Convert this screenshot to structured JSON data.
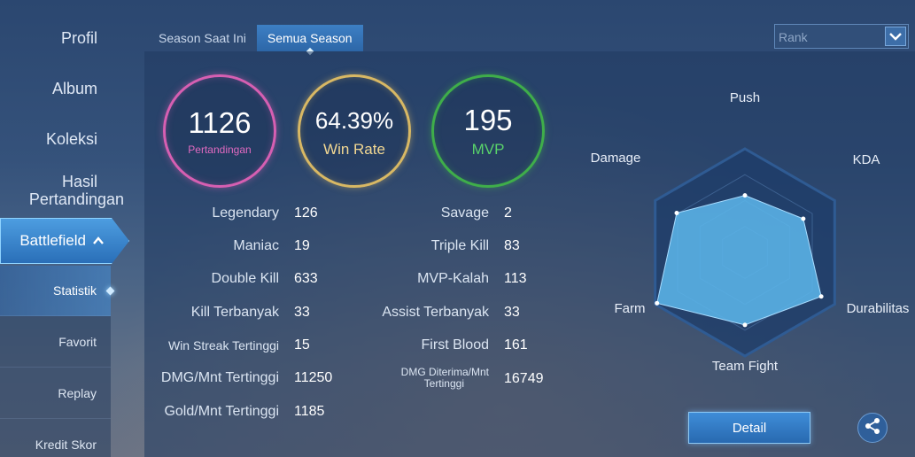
{
  "sidebar": {
    "items": [
      {
        "label": "Profil"
      },
      {
        "label": "Album"
      },
      {
        "label": "Koleksi"
      },
      {
        "label_line1": "Hasil",
        "label_line2": "Pertandingan"
      }
    ],
    "battlefield": {
      "label": "Battlefield",
      "caret": "^"
    },
    "sub_items": [
      {
        "label": "Statistik",
        "active": true
      },
      {
        "label": "Favorit"
      },
      {
        "label": "Replay"
      },
      {
        "label": "Kredit Skor"
      }
    ]
  },
  "tabs": [
    {
      "label": "Season Saat Ini"
    },
    {
      "label": "Semua Season",
      "active": true
    }
  ],
  "filter": {
    "selected": "Rank"
  },
  "summary": {
    "matches": {
      "value": "1126",
      "label": "Pertandingan",
      "color": "#d65fb2"
    },
    "winrate": {
      "value": "64.39%",
      "label": "Win Rate",
      "color": "#d8b864"
    },
    "mvp": {
      "value": "195",
      "label": "MVP",
      "color": "#3fae4a"
    }
  },
  "stats_left": [
    {
      "label": "Legendary",
      "value": "126"
    },
    {
      "label": "Maniac",
      "value": "19"
    },
    {
      "label": "Double Kill",
      "value": "633"
    },
    {
      "label": "Kill Terbanyak",
      "value": "33"
    },
    {
      "label": "Win Streak Tertinggi",
      "value": "15"
    },
    {
      "label": "DMG/Mnt Tertinggi",
      "value": "11250"
    },
    {
      "label": "Gold/Mnt Tertinggi",
      "value": "1185"
    }
  ],
  "stats_right": [
    {
      "label": "Savage",
      "value": "2"
    },
    {
      "label": "Triple Kill",
      "value": "83"
    },
    {
      "label": "MVP-Kalah",
      "value": "113"
    },
    {
      "label": "Assist Terbanyak",
      "value": "33"
    },
    {
      "label": "First Blood",
      "value": "161"
    },
    {
      "label_line1": "DMG Diterima/Mnt",
      "label_line2": "Tertinggi",
      "value": "16749"
    }
  ],
  "radar": {
    "labels": [
      "Push",
      "KDA",
      "Durabilitas",
      "Team Fight",
      "Farm",
      "Damage"
    ],
    "values": [
      0.55,
      0.65,
      0.85,
      0.7,
      0.98,
      0.76
    ],
    "fill_color": "#5bb4e8"
  },
  "actions": {
    "detail_label": "Detail",
    "share_icon": "share-icon"
  }
}
